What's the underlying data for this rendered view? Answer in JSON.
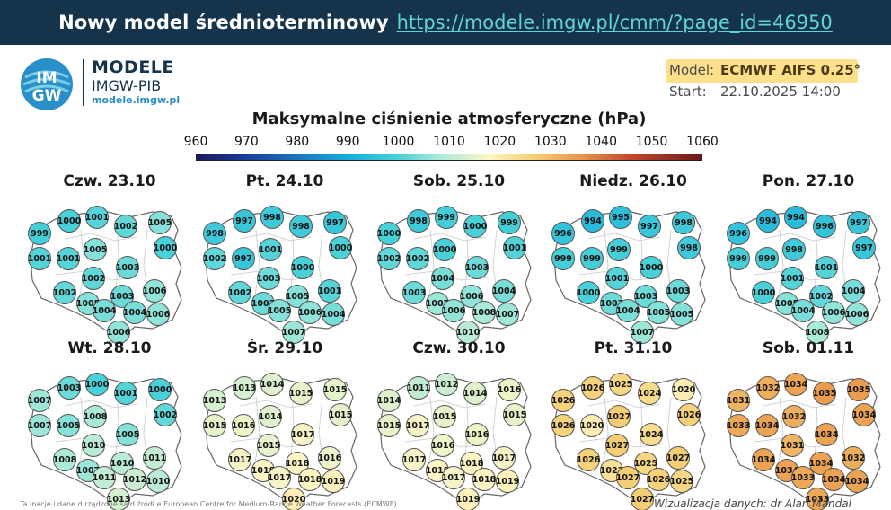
{
  "header": {
    "title": "Nowy model średnioterminowy",
    "url": "https://modele.imgw.pl/cmm/?page_id=46950"
  },
  "logo": {
    "mark_top": "IM",
    "mark_bottom": "GW",
    "title": "MODELE",
    "subtitle": "IMGW-PIB",
    "site": "modele.imgw.pl"
  },
  "info": {
    "model_label": "Model:",
    "model_value": "ECMWF AIFS 0.25°",
    "start_label": "Start:",
    "start_value": "22.10.2025 14:00"
  },
  "chart_title": "Maksymalne ciśnienie atmosferyczne (hPa)",
  "colors": {
    "banner": "#15334a",
    "link": "#5fd6d4",
    "model_highlight": "#ffe08a"
  },
  "chart_data": {
    "type": "heatmap",
    "title": "Maksymalne ciśnienie atmosferyczne (hPa)",
    "colorbar_ticks": [
      "960",
      "970",
      "980",
      "990",
      "1000",
      "1010",
      "1020",
      "1030",
      "1040",
      "1050",
      "1060"
    ],
    "colorbar_range": [
      960,
      1060
    ],
    "panels": [
      {
        "date": "Czw. 23.10",
        "values": [
          1000,
          1001,
          1002,
          1005,
          999,
          1000,
          1001,
          1005,
          1001,
          1003,
          1002,
          1002,
          1006,
          1003,
          1005,
          1004,
          1004,
          1006,
          1006
        ]
      },
      {
        "date": "Pt. 24.10",
        "values": [
          997,
          998,
          998,
          997,
          998,
          1000,
          997,
          1001,
          1002,
          1000,
          1003,
          1002,
          1001,
          1005,
          1003,
          1005,
          1006,
          1004,
          1007
        ]
      },
      {
        "date": "Sob. 25.10",
        "values": [
          998,
          999,
          1000,
          999,
          1000,
          1001,
          1002,
          1000,
          1002,
          1003,
          1004,
          1003,
          1004,
          1006,
          1007,
          1006,
          1008,
          1007,
          1010
        ]
      },
      {
        "date": "Niedz. 26.10",
        "values": [
          994,
          995,
          997,
          998,
          996,
          998,
          999,
          999,
          999,
          1000,
          1001,
          1000,
          1003,
          1003,
          1003,
          1004,
          1005,
          1005,
          1007
        ]
      },
      {
        "date": "Pon. 27.10",
        "values": [
          994,
          994,
          996,
          997,
          996,
          997,
          999,
          998,
          999,
          1001,
          1001,
          1000,
          1004,
          1002,
          1005,
          1004,
          1006,
          1006,
          1008
        ]
      },
      {
        "date": "Wt. 28.10",
        "values": [
          1003,
          1000,
          1001,
          1000,
          1007,
          1002,
          1005,
          1008,
          1007,
          1005,
          1010,
          1008,
          1011,
          1010,
          1007,
          1011,
          1012,
          1010,
          1013
        ]
      },
      {
        "date": "Śr. 29.10",
        "values": [
          1013,
          1014,
          1015,
          1015,
          1013,
          1015,
          1016,
          1014,
          1015,
          1017,
          1015,
          1017,
          1016,
          1018,
          1018,
          1017,
          1018,
          1019,
          1020
        ]
      },
      {
        "date": "Czw. 30.10",
        "values": [
          1011,
          1012,
          1014,
          1016,
          1014,
          1015,
          1017,
          1015,
          1015,
          1016,
          1016,
          1017,
          1017,
          1018,
          1018,
          1017,
          1018,
          1019,
          1019
        ]
      },
      {
        "date": "Pt. 31.10",
        "values": [
          1026,
          1025,
          1024,
          1020,
          1026,
          1026,
          1020,
          1027,
          1026,
          1024,
          1027,
          1026,
          1027,
          1025,
          1023,
          1027,
          1026,
          1025,
          1027
        ]
      },
      {
        "date": "Sob. 01.11",
        "values": [
          1032,
          1034,
          1035,
          1035,
          1031,
          1034,
          1034,
          1032,
          1033,
          1034,
          1031,
          1034,
          1032,
          1034,
          1034,
          1033,
          1034,
          1034,
          1033
        ]
      }
    ]
  },
  "footer": {
    "left": "Ta inacje i dane d rządzone są d źródł e European Centre for Medium-Range Weather Forecasts (ECMWF)",
    "right": "Wizualizacja danych: dr Alan Mandal"
  }
}
